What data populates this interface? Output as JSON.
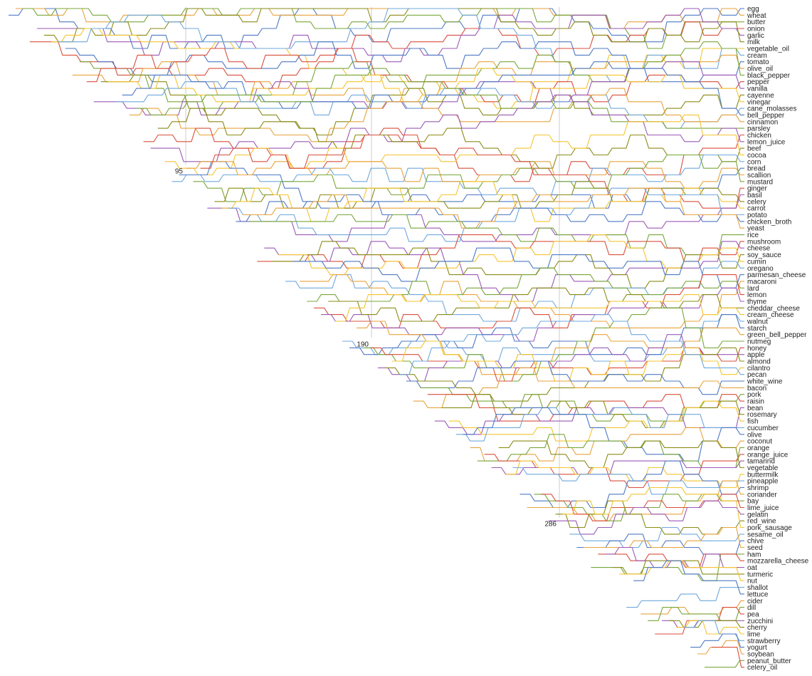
{
  "chart_data": {
    "type": "line",
    "title": "",
    "xlabel": "",
    "ylabel": "",
    "colors": [
      "#4e79c4",
      "#e8a33d",
      "#79a63a",
      "#d94f3d",
      "#9b59b6",
      "#8b8b17",
      "#f4c430",
      "#6fa8dc"
    ],
    "x_markers": [
      95,
      190,
      286
    ],
    "ingredients": [
      "egg",
      "wheat",
      "butter",
      "onion",
      "garlic",
      "milk",
      "vegetable_oil",
      "cream",
      "tomato",
      "olive_oil",
      "black_pepper",
      "pepper",
      "vanilla",
      "cayenne",
      "vinegar",
      "cane_molasses",
      "bell_pepper",
      "cinnamon",
      "parsley",
      "chicken",
      "lemon_juice",
      "beef",
      "cocoa",
      "corn",
      "bread",
      "scallion",
      "mustard",
      "ginger",
      "basil",
      "celery",
      "carrot",
      "potato",
      "chicken_broth",
      "yeast",
      "rice",
      "mushroom",
      "cheese",
      "soy_sauce",
      "cumin",
      "oregano",
      "parmesan_cheese",
      "macaroni",
      "lard",
      "lemon",
      "thyme",
      "cheddar_cheese",
      "cream_cheese",
      "walnut",
      "starch",
      "green_bell_pepper",
      "nutmeg",
      "honey",
      "apple",
      "almond",
      "cilantro",
      "pecan",
      "white_wine",
      "bacon",
      "pork",
      "raisin",
      "bean",
      "rosemary",
      "fish",
      "cucumber",
      "olive",
      "coconut",
      "orange",
      "orange_juice",
      "tamarind",
      "vegetable",
      "buttermilk",
      "pineapple",
      "shrimp",
      "coriander",
      "bay",
      "lime_juice",
      "gelatin",
      "red_wine",
      "pork_sausage",
      "sesame_oil",
      "chive",
      "seed",
      "ham",
      "mozzarella_cheese",
      "oat",
      "turmeric",
      "nut",
      "shallot",
      "lettuce",
      "cider",
      "dill",
      "pea",
      "zucchini",
      "cherry",
      "lime",
      "strawberry",
      "yogurt",
      "soybean",
      "peanut_butter",
      "celery_oil"
    ]
  }
}
